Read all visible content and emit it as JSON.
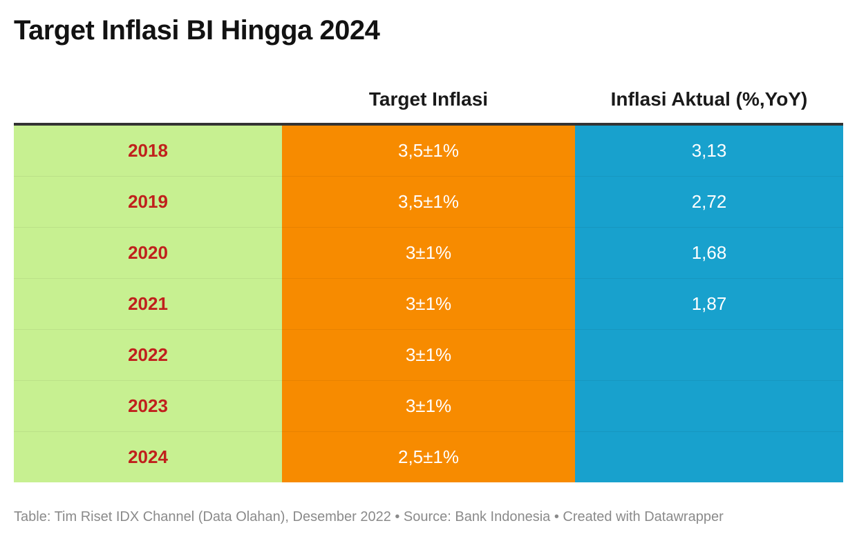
{
  "title": "Target Inflasi BI Hingga 2024",
  "footer": "Table: Tim Riset IDX Channel (Data Olahan), Desember 2022 • Source: Bank Indonesia • Created with Datawrapper",
  "colors": {
    "year_column": "#c7f091",
    "target_column": "#f78b00",
    "actual_column": "#18a1cd",
    "year_text": "#c0201c"
  },
  "chart_data": {
    "type": "table",
    "columns": [
      "",
      "Target Inflasi",
      "Inflasi Aktual (%,YoY)"
    ],
    "rows": [
      {
        "year": "2018",
        "target": "3,5±1%",
        "actual": "3,13"
      },
      {
        "year": "2019",
        "target": "3,5±1%",
        "actual": "2,72"
      },
      {
        "year": "2020",
        "target": "3±1%",
        "actual": "1,68"
      },
      {
        "year": "2021",
        "target": "3±1%",
        "actual": "1,87"
      },
      {
        "year": "2022",
        "target": "3±1%",
        "actual": ""
      },
      {
        "year": "2023",
        "target": "3±1%",
        "actual": ""
      },
      {
        "year": "2024",
        "target": "2,5±1%",
        "actual": ""
      }
    ]
  }
}
